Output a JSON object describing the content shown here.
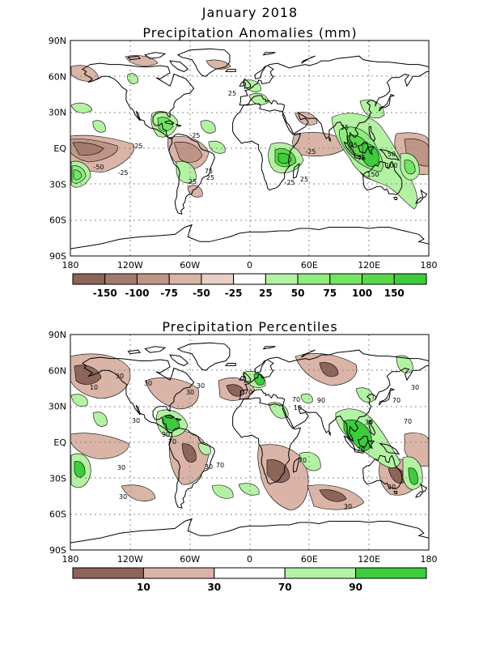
{
  "figure": {
    "main_title": "January 2018",
    "panel1_title": "Precipitation Anomalies (mm)",
    "panel2_title": "Precipitation Percentiles"
  },
  "axes": {
    "lon_ticks": [
      "180",
      "120W",
      "60W",
      "0",
      "60E",
      "120E",
      "180"
    ],
    "lat_ticks": [
      "90N",
      "60N",
      "30N",
      "EQ",
      "30S",
      "60S",
      "90S"
    ]
  },
  "colors": {
    "dry3": "#8c6458",
    "dry2": "#a37b6e",
    "dry1": "#bf9686",
    "dry0": "#d9b4a7",
    "dry_light": "#e8cfc5",
    "wet_light": "#b4f2a3",
    "wet1": "#90ec80",
    "wet2": "#73e463",
    "wet3": "#5ad84a",
    "wet4": "#3ccc3c",
    "coast": "#000000"
  },
  "anomaly_colorbar": {
    "boxes": [
      "dry3",
      "dry2",
      "dry1",
      "dry0",
      "dry_light",
      "none",
      "wet_light",
      "wet1",
      "wet2",
      "wet3",
      "wet4"
    ],
    "labels": [
      "-150",
      "-100",
      "-75",
      "-50",
      "-25",
      "25",
      "50",
      "75",
      "100",
      "150"
    ]
  },
  "percentile_colorbar": {
    "boxes": [
      "dry3",
      "dry0",
      "none",
      "wet_light",
      "wet4"
    ],
    "labels": [
      "10",
      "30",
      "70",
      "90"
    ]
  },
  "anomaly_contour_labels": [
    "-50",
    "-25",
    "25",
    "-25",
    "-25",
    "25",
    "-25",
    "75",
    "25",
    "25",
    "-25",
    "25",
    "75",
    "150",
    "100",
    "50",
    "75"
  ],
  "percentile_contour_labels": [
    "30",
    "10",
    "30",
    "30",
    "30",
    "70",
    "90",
    "70",
    "30",
    "30",
    "70",
    "30",
    "70",
    "10",
    "70",
    "90",
    "30",
    "70",
    "70",
    "30",
    "30",
    "30",
    "30",
    "70"
  ]
}
